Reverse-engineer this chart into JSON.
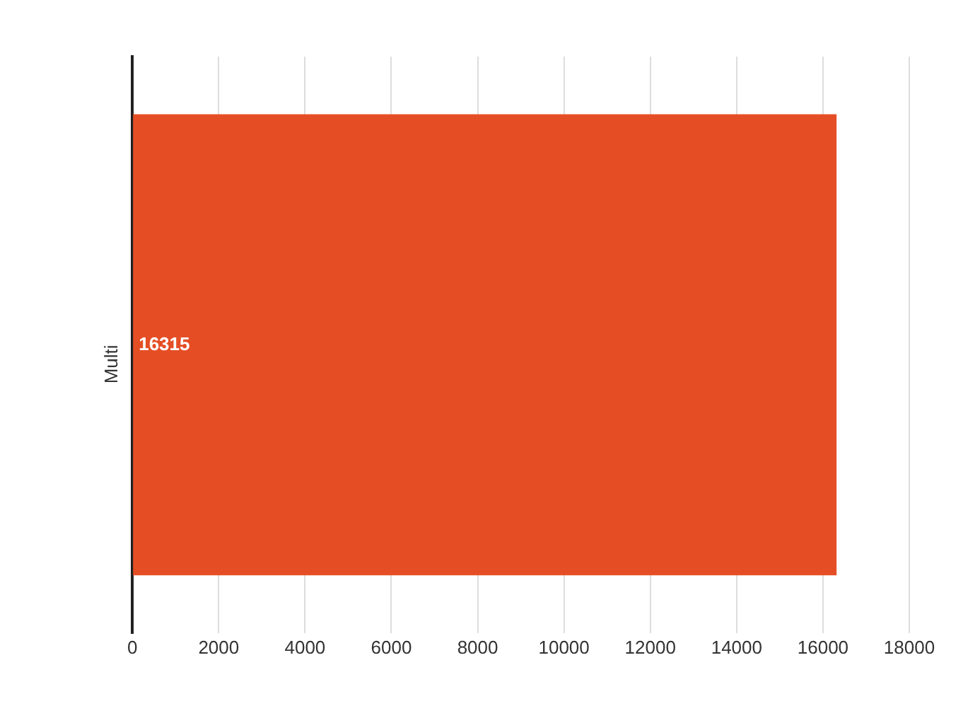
{
  "chart_data": {
    "type": "bar",
    "orientation": "horizontal",
    "categories": [
      "Multi"
    ],
    "values": [
      16315
    ],
    "color": "#e54e25",
    "data_labels": true,
    "xlim": [
      0,
      18000
    ],
    "xticks": [
      0,
      2000,
      4000,
      6000,
      8000,
      10000,
      12000,
      14000,
      16000,
      18000
    ],
    "grid": "x",
    "legend": false
  }
}
